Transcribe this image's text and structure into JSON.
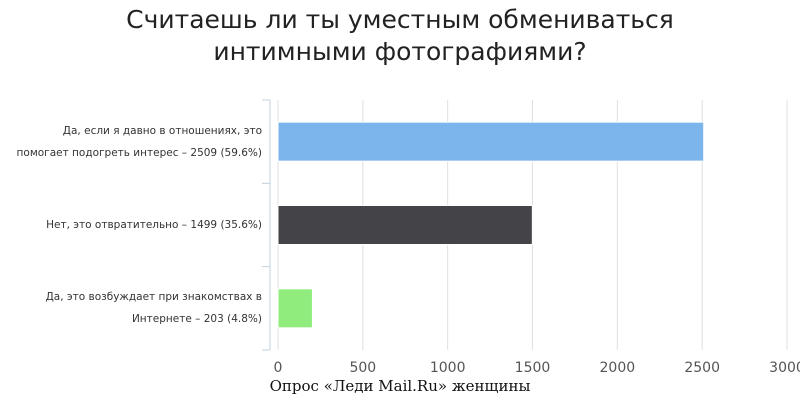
{
  "chart_data": {
    "type": "bar",
    "orientation": "horizontal",
    "title": "Считаешь ли ты уместным обмениваться интимными фотографиями?",
    "categories": [
      "Да, если я давно в отношениях, это помогает подогреть интерес – 2509 (59.6%)",
      "Нет, это отвратительно – 1499 (35.6%)",
      "Да, это возбуждает при знакомствах в Интернете – 203 (4.8%)"
    ],
    "values": [
      2509,
      1499,
      203
    ],
    "colors": [
      "#7cb5ec",
      "#434348",
      "#90ed7d"
    ],
    "xlim": [
      0,
      3000
    ],
    "xticks": [
      0,
      500,
      1000,
      1500,
      2000,
      2500,
      3000
    ],
    "grid": true,
    "caption": "Опрос «Леди Mail.Ru» женщины"
  }
}
